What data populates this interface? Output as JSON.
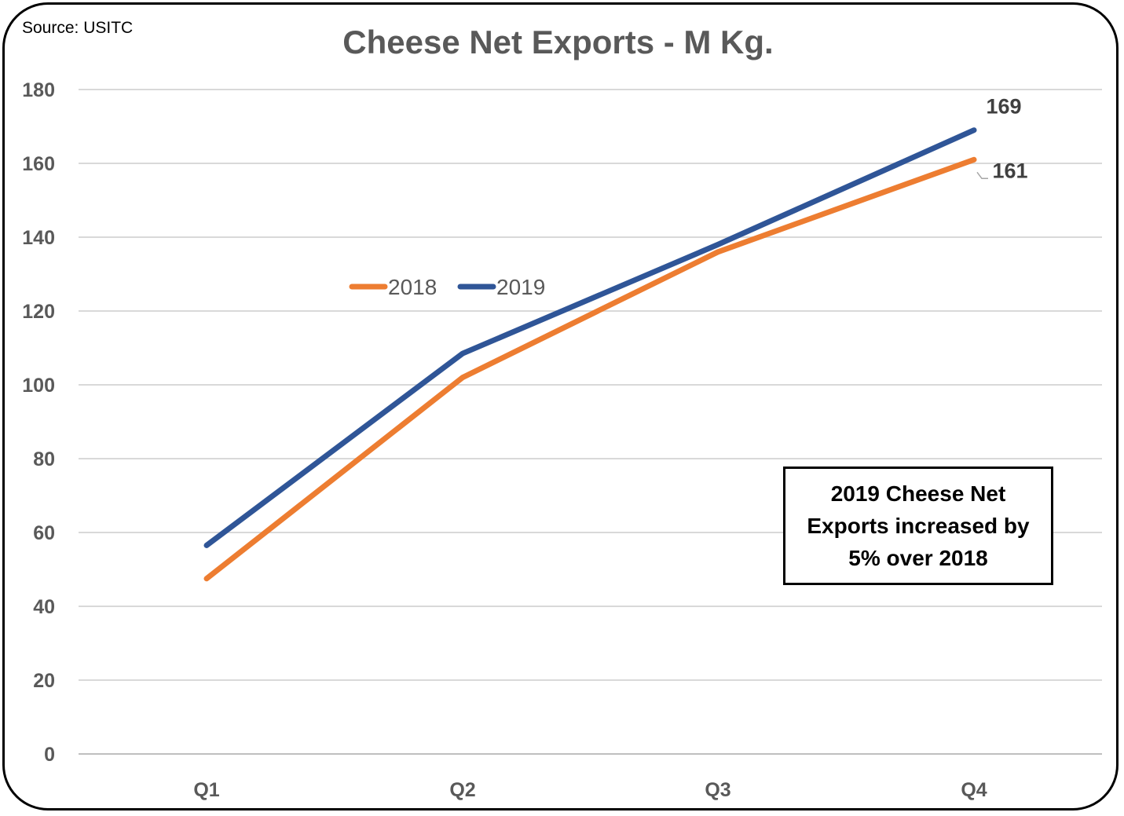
{
  "source": "Source: USITC",
  "chart_data": {
    "type": "line",
    "title": "Cheese Net Exports - M Kg.",
    "categories": [
      "Q1",
      "Q2",
      "Q3",
      "Q4"
    ],
    "series": [
      {
        "name": "2018",
        "values": [
          47.5,
          102,
          136,
          161
        ],
        "color": "#ED7D31"
      },
      {
        "name": "2019",
        "values": [
          56.5,
          108.5,
          138,
          169
        ],
        "color": "#2F5597"
      }
    ],
    "ylim": [
      0,
      180
    ],
    "yticks": [
      0,
      20,
      40,
      60,
      80,
      100,
      120,
      140,
      160,
      180
    ],
    "grid": true,
    "legend_position": "inside-upper-left",
    "data_labels": [
      {
        "series": 1,
        "index": 3,
        "text": "169"
      },
      {
        "series": 0,
        "index": 3,
        "text": "161"
      }
    ],
    "annotation": "2019 Cheese Net Exports increased by 5% over 2018"
  }
}
